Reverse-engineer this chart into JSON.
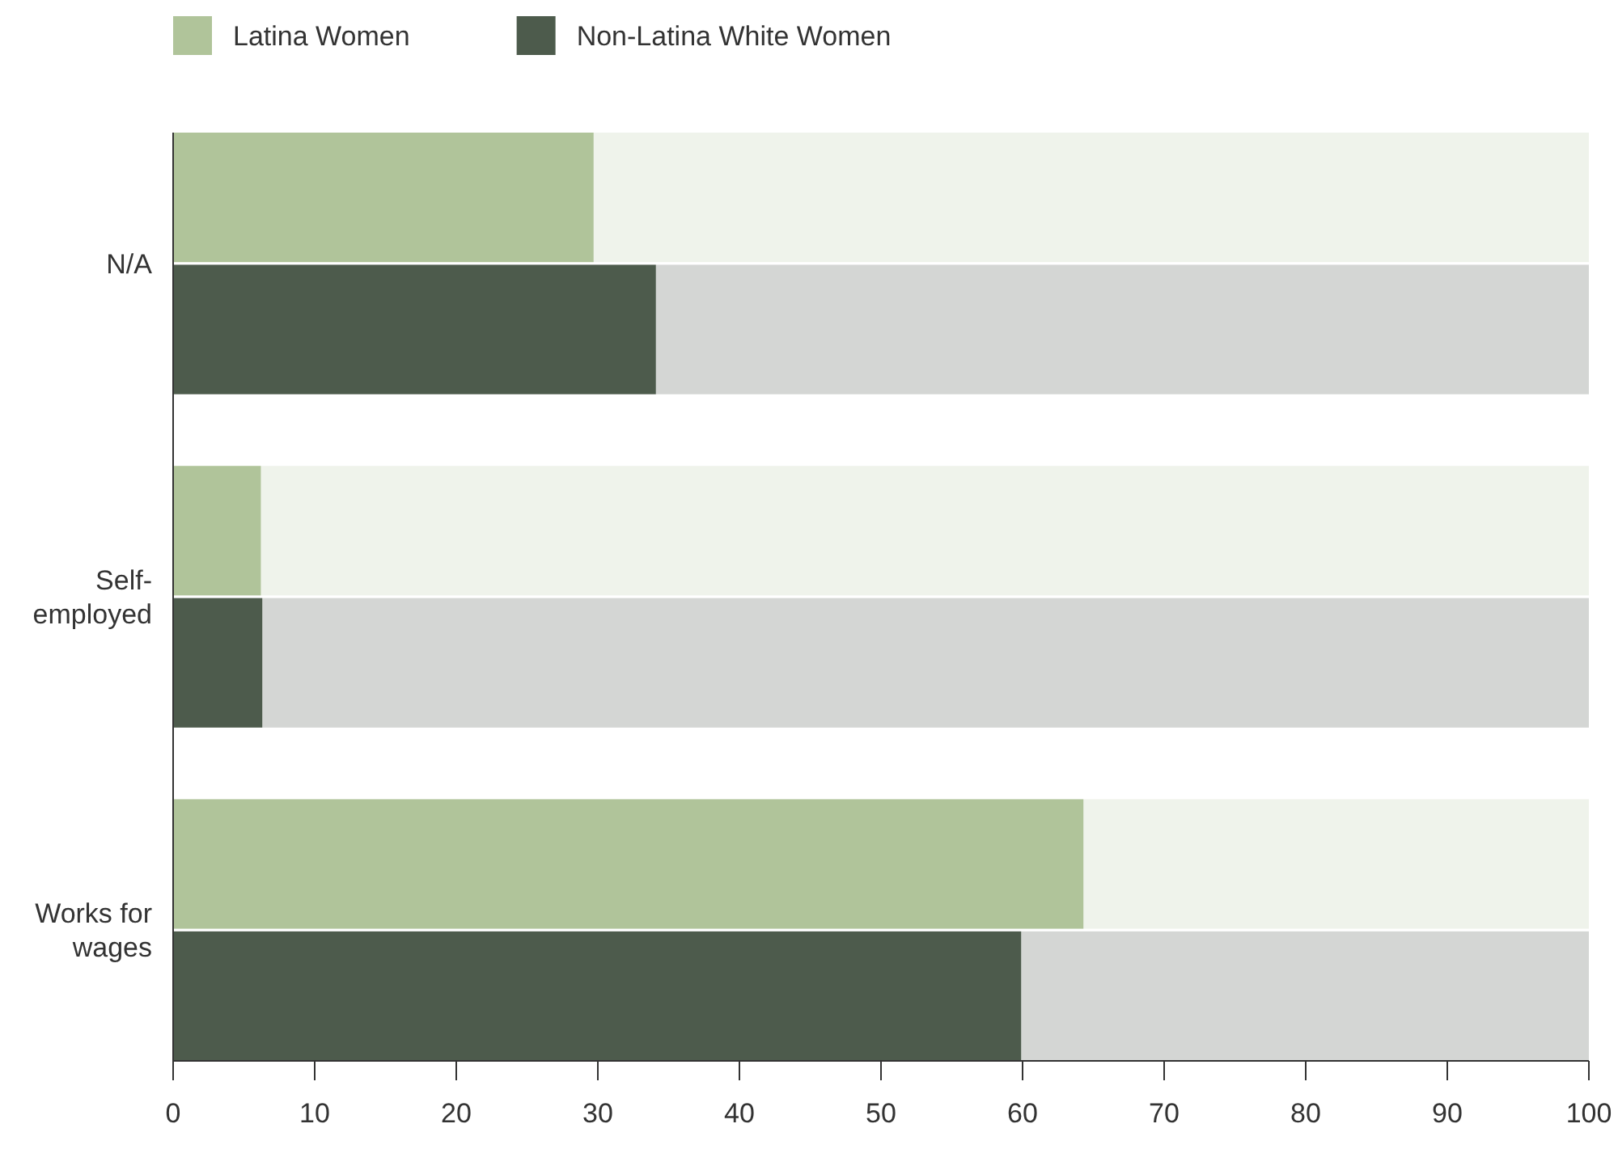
{
  "chart_data": {
    "type": "bar",
    "orientation": "horizontal",
    "categories": [
      "N/A",
      "Self-employed",
      "Works for wages"
    ],
    "series": [
      {
        "name": "Latina Women",
        "color": "#b0c49a",
        "values": [
          29.7,
          6.2,
          64.3
        ]
      },
      {
        "name": "Non-Latina White Women",
        "color": "#4d5b4c",
        "values": [
          34.1,
          6.3,
          59.9
        ]
      }
    ],
    "xlim": [
      0,
      100
    ],
    "xticks": [
      0,
      10,
      20,
      30,
      40,
      50,
      60,
      70,
      80,
      90,
      100
    ],
    "legend": "top left",
    "grid": false
  }
}
